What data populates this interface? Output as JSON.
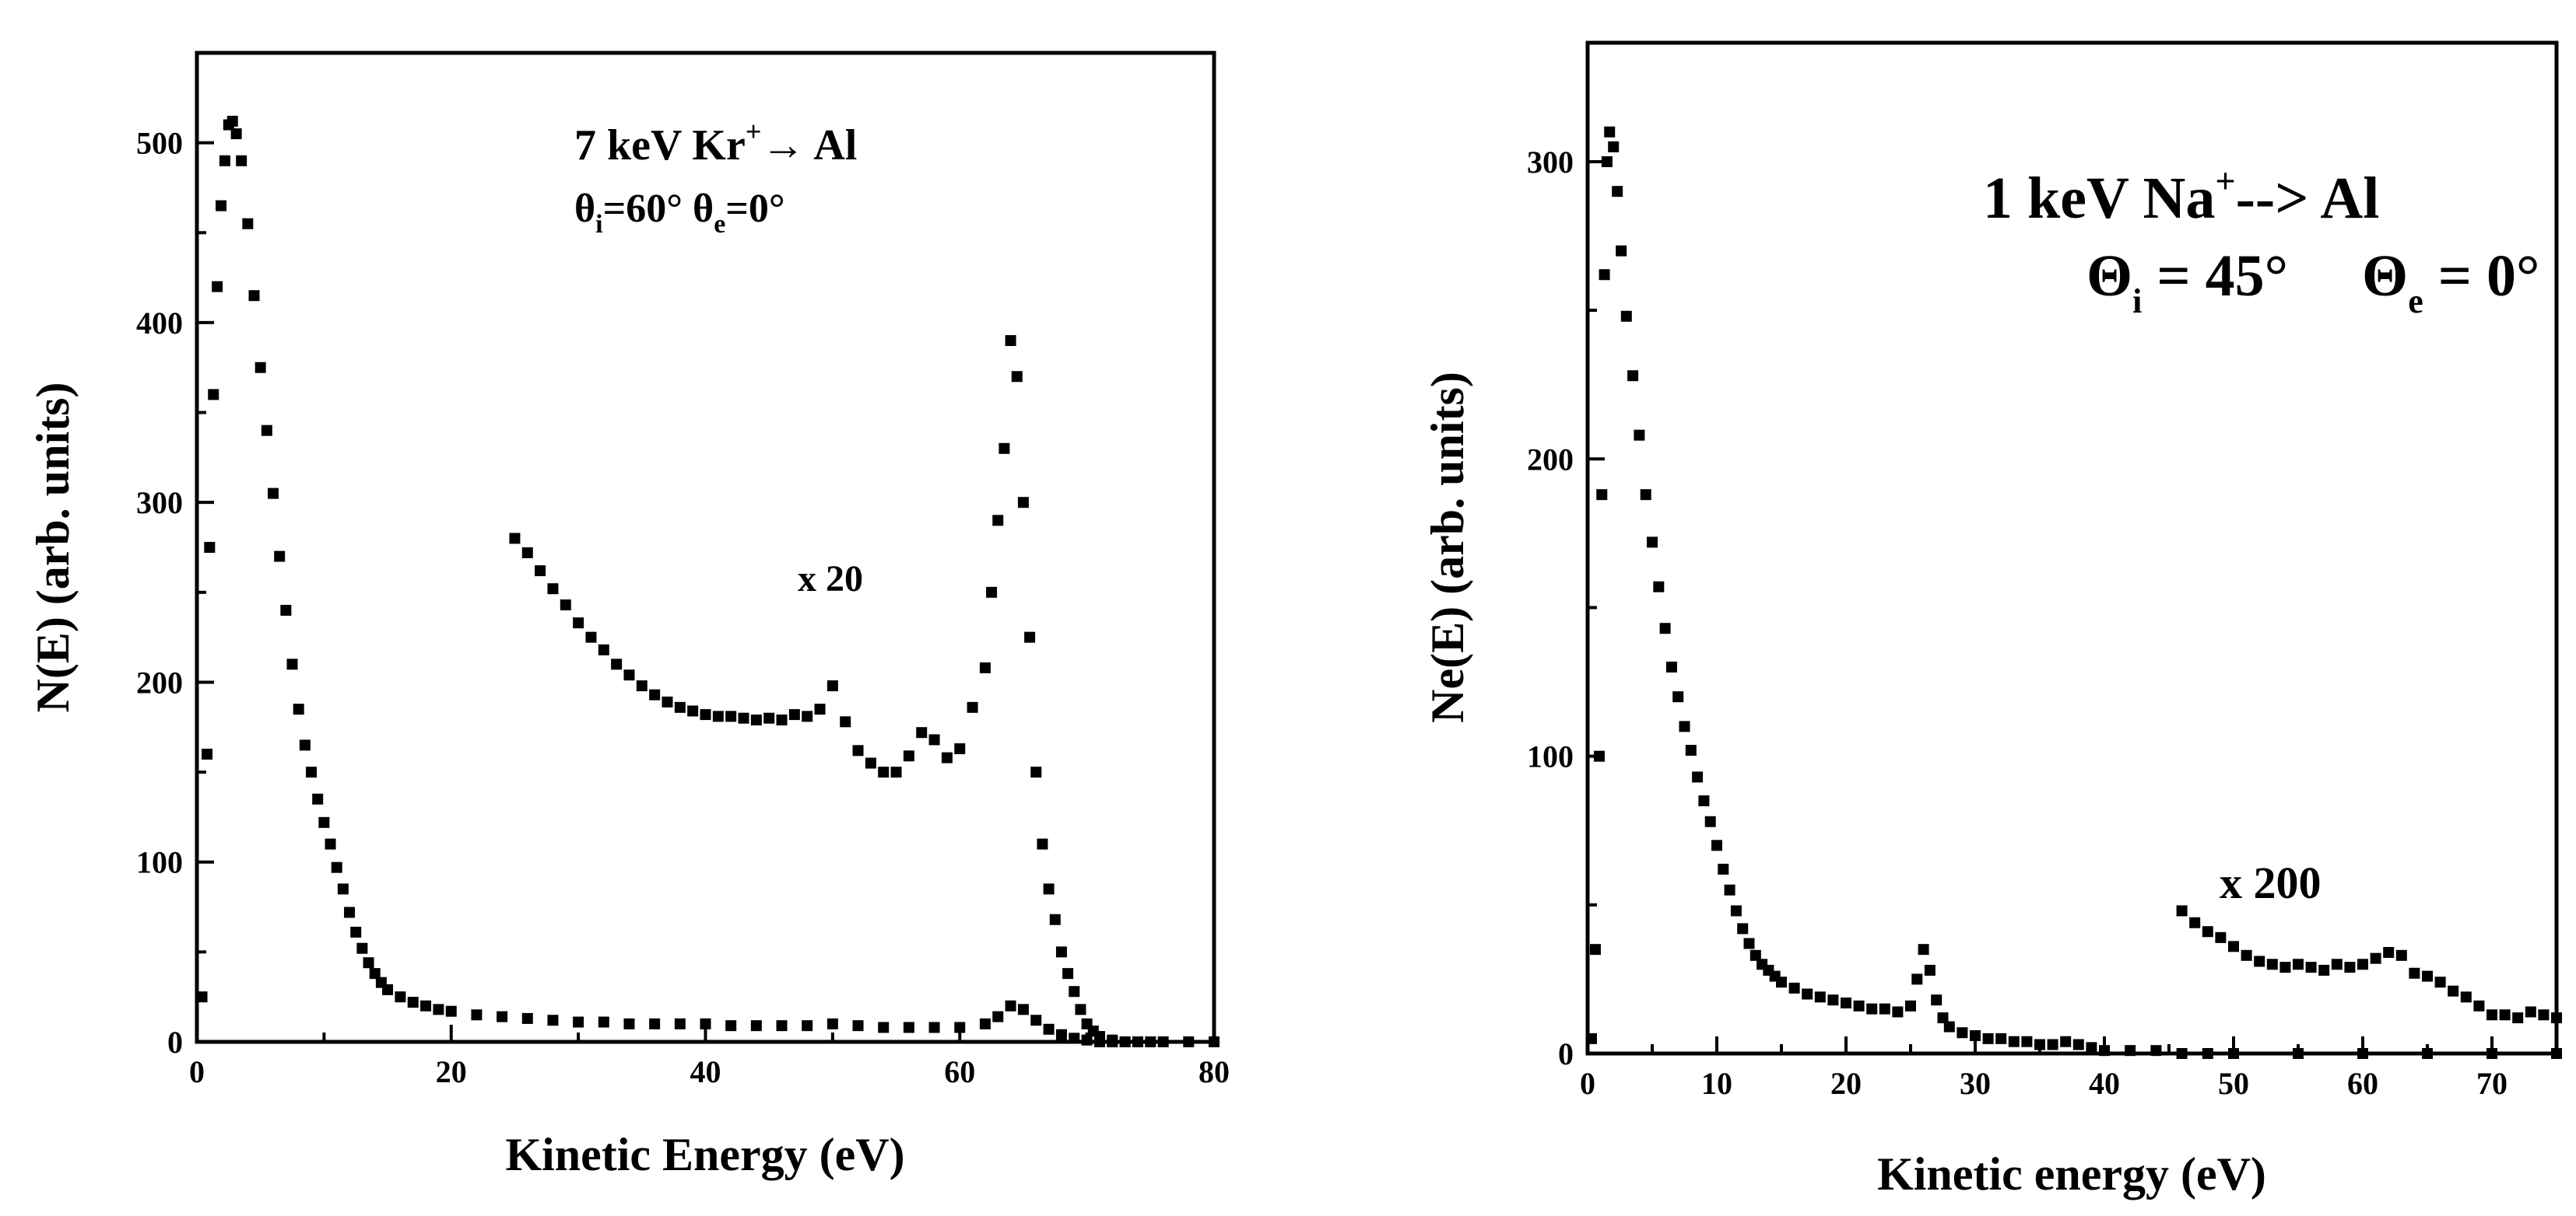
{
  "chart_data": [
    {
      "type": "scatter",
      "title": "",
      "xlabel": "Kinetic Energy (eV)",
      "ylabel": "N(E) (arb. units)",
      "xlim": [
        0,
        80
      ],
      "ylim": [
        0,
        550
      ],
      "xticks": [
        "0",
        "20",
        "40",
        "60",
        "80"
      ],
      "yticks": [
        "0",
        "100",
        "200",
        "300",
        "400",
        "500"
      ],
      "grid": false,
      "annotation": {
        "line1_a": "7 keV Kr",
        "line1_sup": "+",
        "line1_b": "→ Al",
        "line2_a": "θ",
        "line2_sub1": "i",
        "line2_b": "=60°  θ",
        "line2_sub2": "e",
        "line2_c": "=0°"
      },
      "series_label": "x 20",
      "series": [
        {
          "x": [
            0.4,
            0.8,
            1.0,
            1.3,
            1.6,
            1.9,
            2.2,
            2.5,
            2.8,
            3.1,
            3.5,
            4,
            4.5,
            5,
            5.5,
            6,
            6.5,
            7,
            7.5,
            8,
            8.5,
            9,
            9.5,
            10,
            10.5,
            11,
            11.5,
            12,
            12.5,
            13,
            13.5,
            14,
            14.5,
            15,
            16,
            17,
            18,
            19,
            20,
            22,
            24,
            26,
            28,
            30,
            32,
            34,
            36,
            38,
            40,
            42,
            44,
            46,
            48,
            50,
            52,
            54,
            56,
            58,
            60,
            62,
            63,
            64,
            65,
            66,
            67,
            68,
            69,
            70,
            71,
            72,
            73,
            74,
            75,
            76,
            78,
            80
          ],
          "y": [
            25,
            160,
            275,
            360,
            420,
            465,
            490,
            510,
            512,
            505,
            490,
            455,
            415,
            375,
            340,
            305,
            270,
            240,
            210,
            185,
            165,
            150,
            135,
            122,
            110,
            97,
            85,
            72,
            61,
            52,
            44,
            38,
            33,
            29,
            25,
            22,
            20,
            18,
            17,
            15,
            14,
            13,
            12,
            11,
            11,
            10,
            10,
            10,
            10,
            9,
            9,
            9,
            9,
            10,
            9,
            8,
            8,
            8,
            8,
            10,
            14,
            20,
            18,
            12,
            7,
            4,
            2,
            1,
            0,
            0,
            0,
            0,
            0,
            0,
            0,
            0
          ]
        },
        {
          "x": [
            25,
            26,
            27,
            28,
            29,
            30,
            31,
            32,
            33,
            34,
            35,
            36,
            37,
            38,
            39,
            40,
            41,
            42,
            43,
            44,
            45,
            46,
            47,
            48,
            49,
            50,
            51,
            52,
            53,
            54,
            55,
            56,
            57,
            58,
            59,
            60,
            61,
            62,
            62.5,
            63,
            63.5,
            64,
            64.5,
            65,
            65.5,
            66,
            66.5,
            67,
            67.5,
            68,
            68.5,
            69,
            69.5,
            70,
            70.5,
            71,
            72,
            73,
            74
          ],
          "y": [
            280,
            272,
            262,
            252,
            243,
            233,
            225,
            218,
            210,
            204,
            198,
            193,
            189,
            186,
            184,
            182,
            181,
            181,
            180,
            179,
            180,
            179,
            182,
            181,
            185,
            198,
            178,
            162,
            155,
            150,
            150,
            159,
            172,
            168,
            158,
            163,
            186,
            208,
            250,
            290,
            330,
            390,
            370,
            300,
            225,
            150,
            110,
            85,
            68,
            50,
            38,
            28,
            18,
            10,
            6,
            3,
            1,
            0,
            0
          ]
        }
      ]
    },
    {
      "type": "scatter",
      "title": "",
      "xlabel": "Kinetic energy (eV)",
      "ylabel": "Ne(E) (arb. units)",
      "xlim": [
        0,
        75
      ],
      "ylim": [
        0,
        340
      ],
      "xticks": [
        "0",
        "10",
        "20",
        "30",
        "40",
        "50",
        "60",
        "70"
      ],
      "yticks": [
        "0",
        "100",
        "200",
        "300"
      ],
      "grid": false,
      "annotation": {
        "line1_a": "1 keV Na",
        "line1_sup": "+",
        "line1_b": "--> Al",
        "line2_a": "Θ",
        "line2_sub1": "i",
        "line2_b": " = 45°     Θ",
        "line2_sub2": "e",
        "line2_c": " = 0°"
      },
      "series_label": "x 200",
      "series": [
        {
          "x": [
            0.3,
            0.6,
            0.9,
            1.1,
            1.3,
            1.5,
            1.7,
            2.0,
            2.3,
            2.6,
            3,
            3.5,
            4,
            4.5,
            5,
            5.5,
            6,
            6.5,
            7,
            7.5,
            8,
            8.5,
            9,
            9.5,
            10,
            10.5,
            11,
            11.5,
            12,
            12.5,
            13,
            13.5,
            14,
            14.5,
            15,
            16,
            17,
            18,
            19,
            20,
            21,
            22,
            23,
            24,
            25,
            25.5,
            26,
            26.5,
            27,
            27.5,
            28,
            29,
            30,
            31,
            32,
            33,
            34,
            35,
            36,
            37,
            38,
            39,
            40,
            42,
            44,
            46,
            48,
            50,
            55,
            60,
            65,
            70,
            75
          ],
          "y": [
            5,
            35,
            100,
            188,
            262,
            300,
            310,
            305,
            290,
            270,
            248,
            228,
            208,
            188,
            172,
            157,
            143,
            130,
            120,
            110,
            102,
            93,
            85,
            78,
            70,
            62,
            55,
            48,
            42,
            37,
            33,
            30,
            28,
            26,
            24,
            22,
            20,
            19,
            18,
            17,
            16,
            15,
            15,
            14,
            16,
            25,
            35,
            28,
            18,
            12,
            9,
            7,
            6,
            5,
            5,
            4,
            4,
            3,
            3,
            4,
            3,
            2,
            1,
            1,
            1,
            0,
            0,
            0,
            0,
            0,
            0,
            0,
            0
          ]
        },
        {
          "x": [
            46,
            47,
            48,
            49,
            50,
            51,
            52,
            53,
            54,
            55,
            56,
            57,
            58,
            59,
            60,
            61,
            62,
            63,
            64,
            65,
            66,
            67,
            68,
            69,
            70,
            71,
            72,
            73,
            74,
            75
          ],
          "y": [
            48,
            44,
            41,
            39,
            36,
            33,
            31,
            30,
            29,
            30,
            29,
            28,
            30,
            29,
            30,
            32,
            34,
            33,
            27,
            26,
            24,
            21,
            19,
            16,
            13,
            13,
            12,
            14,
            13,
            12
          ]
        }
      ]
    }
  ]
}
